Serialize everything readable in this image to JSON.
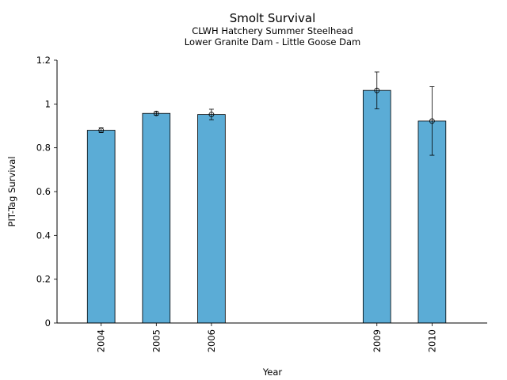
{
  "chart_data": {
    "type": "bar",
    "title": "Smolt Survival",
    "subtitle_lines": [
      "CLWH Hatchery Summer Steelhead",
      "Lower Granite Dam - Little Goose Dam"
    ],
    "xlabel": "Year",
    "ylabel": "PIT-Tag Survival",
    "ylim": [
      0,
      1.2
    ],
    "yticks": [
      0,
      0.2,
      0.4,
      0.6,
      0.8,
      1,
      1.2
    ],
    "ytick_labels": [
      "0",
      "0.2",
      "0.4",
      "0.6",
      "0.8",
      "1",
      "1.2"
    ],
    "x_axis_years": [
      2003.2,
      2011
    ],
    "categories": [
      "2004",
      "2005",
      "2006",
      "2009",
      "2010"
    ],
    "x": [
      2004,
      2005,
      2006,
      2009,
      2010
    ],
    "values": [
      0.88,
      0.957,
      0.952,
      1.062,
      0.922
    ],
    "error_low": [
      0.869,
      0.949,
      0.928,
      0.978,
      0.766
    ],
    "error_high": [
      0.891,
      0.965,
      0.976,
      1.146,
      1.079
    ],
    "bar_color": "#5bacd6",
    "grid": false,
    "legend": "none"
  }
}
